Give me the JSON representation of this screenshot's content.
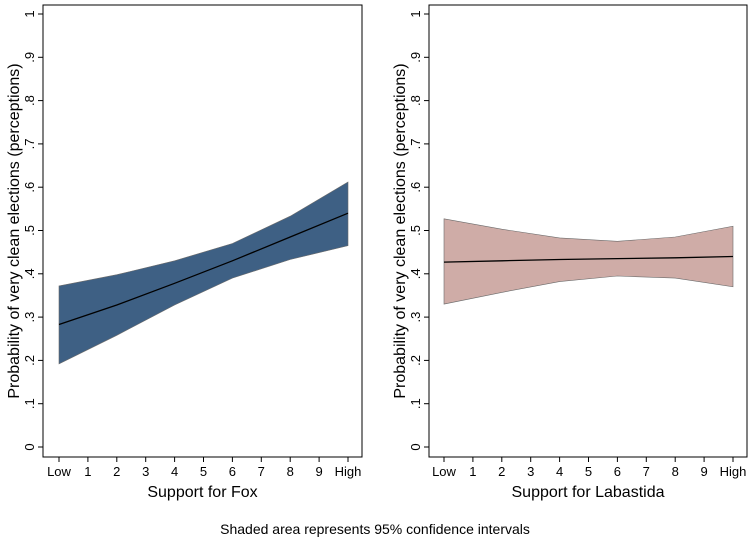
{
  "caption": "Shaded area represents 95% confidence intervals",
  "chart_data": [
    {
      "type": "line",
      "title": "",
      "xlabel": "Support for Fox",
      "ylabel": "Probability of very clean elections (perceptions)",
      "x_ticks": [
        "Low",
        "1",
        "2",
        "3",
        "4",
        "5",
        "6",
        "7",
        "8",
        "9",
        "High"
      ],
      "y_ticks": [
        "0",
        ".1",
        ".2",
        ".3",
        ".4",
        ".5",
        ".6",
        ".7",
        ".8",
        ".9",
        "1"
      ],
      "ylim": [
        0,
        1
      ],
      "xlim": [
        0,
        10
      ],
      "grid": false,
      "series": [
        {
          "x": [
            0,
            2,
            4,
            6,
            8,
            10
          ],
          "values": [
            0.283,
            0.328,
            0.378,
            0.43,
            0.485,
            0.54
          ],
          "ci_lower": [
            0.192,
            0.258,
            0.328,
            0.39,
            0.433,
            0.465
          ],
          "ci_upper": [
            0.372,
            0.398,
            0.43,
            0.47,
            0.533,
            0.612
          ]
        }
      ],
      "band_color": "#3e6084",
      "line_color": "#000000"
    },
    {
      "type": "line",
      "title": "",
      "xlabel": "Support for Labastida",
      "ylabel": "Probability of very clean elections (perceptions)",
      "x_ticks": [
        "Low",
        "1",
        "2",
        "3",
        "4",
        "5",
        "6",
        "7",
        "8",
        "9",
        "High"
      ],
      "y_ticks": [
        "0",
        ".1",
        ".2",
        ".3",
        ".4",
        ".5",
        ".6",
        ".7",
        ".8",
        ".9",
        "1"
      ],
      "ylim": [
        0,
        1
      ],
      "xlim": [
        0,
        10
      ],
      "grid": false,
      "series": [
        {
          "x": [
            0,
            2,
            4,
            6,
            8,
            10
          ],
          "values": [
            0.427,
            0.43,
            0.433,
            0.435,
            0.437,
            0.44
          ],
          "ci_lower": [
            0.33,
            0.357,
            0.382,
            0.395,
            0.39,
            0.37
          ],
          "ci_upper": [
            0.527,
            0.503,
            0.483,
            0.475,
            0.485,
            0.51
          ]
        }
      ],
      "band_color": "#cfaca7",
      "line_color": "#000000"
    }
  ]
}
